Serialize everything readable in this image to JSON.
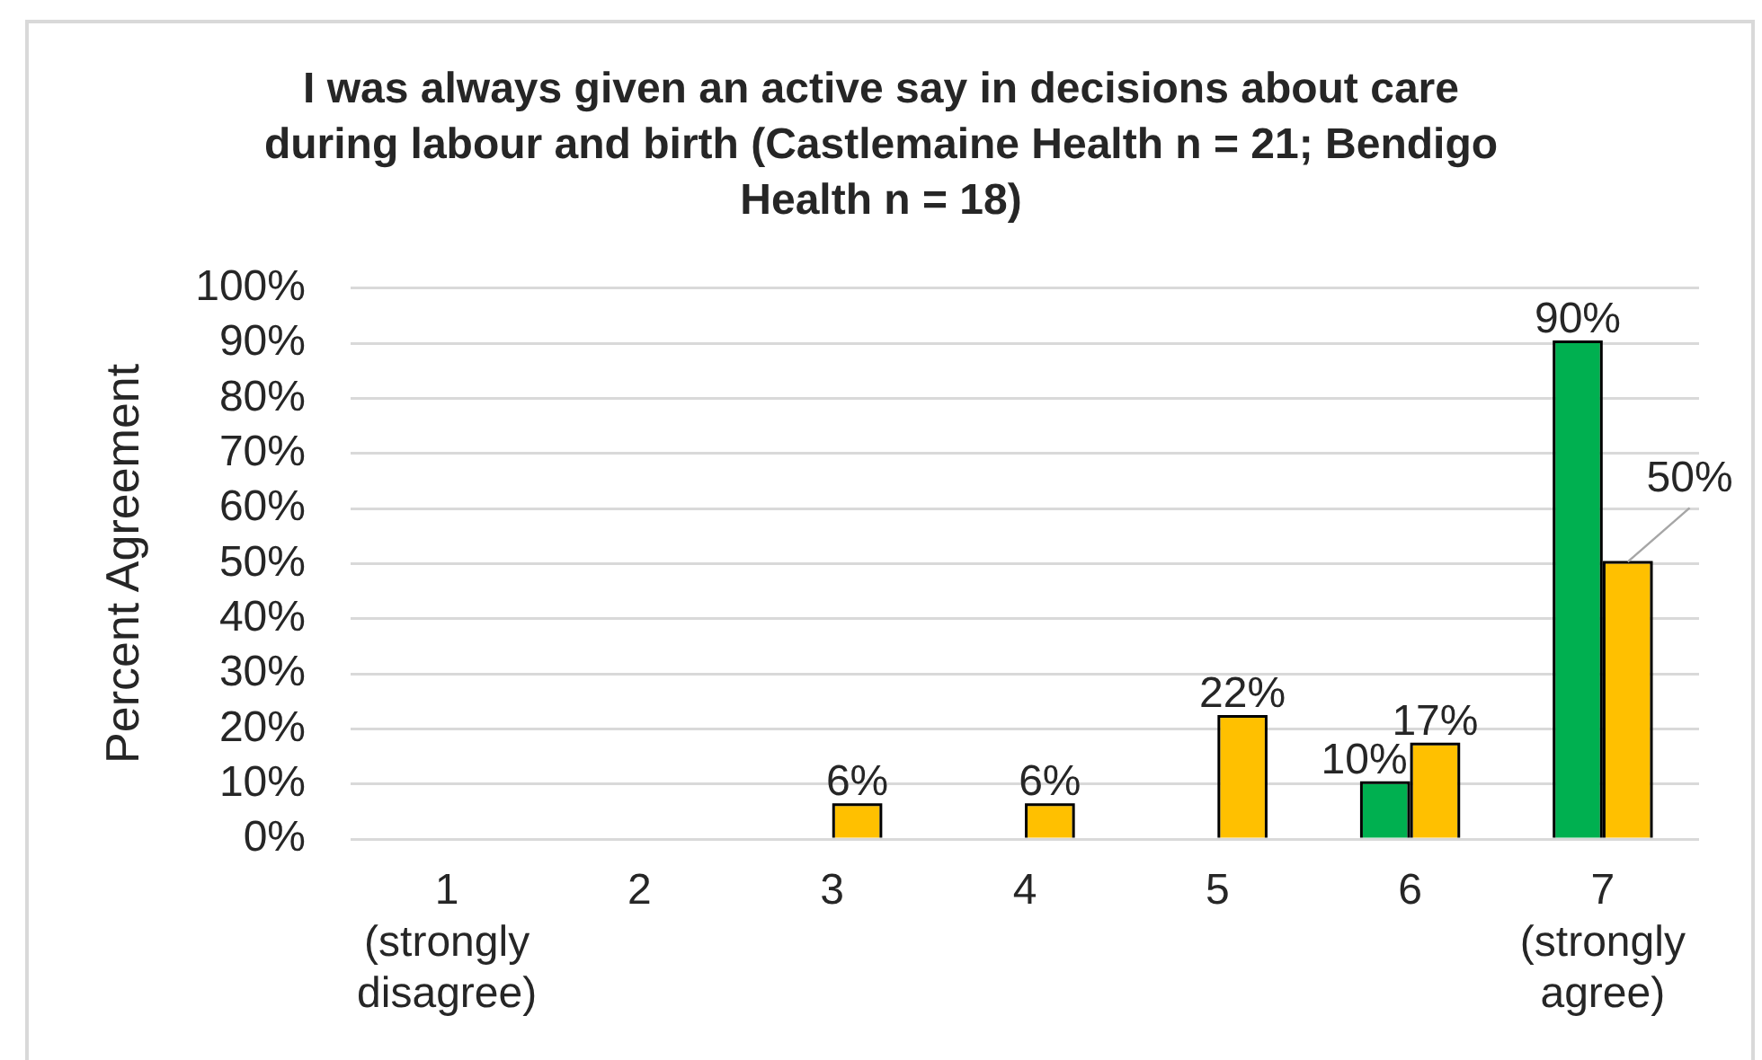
{
  "chart_data": {
    "type": "bar",
    "title": "I was always given an active say in decisions about care during labour and birth (Castlemaine Health n = 21; Bendigo Health n = 18)",
    "ylabel": "Percent Agreement",
    "categories": [
      "1 (strongly disagree)",
      "2",
      "3",
      "4",
      "5",
      "6",
      "7 (strongly agree)"
    ],
    "series": [
      {
        "color": "#00b050",
        "values": [
          0,
          0,
          0,
          0,
          0,
          10,
          90
        ],
        "value_labels": [
          null,
          null,
          null,
          null,
          null,
          "10%",
          "90%"
        ]
      },
      {
        "color": "#ffc000",
        "values": [
          0,
          0,
          6,
          6,
          22,
          17,
          50
        ],
        "value_labels": [
          null,
          null,
          "6%",
          "6%",
          "22%",
          "17%",
          "50%"
        ]
      }
    ],
    "ylim": [
      0,
      100
    ],
    "yticks": [
      {
        "value": 0,
        "label": "0%"
      },
      {
        "value": 10,
        "label": "10%"
      },
      {
        "value": 20,
        "label": "20%"
      },
      {
        "value": 30,
        "label": "30%"
      },
      {
        "value": 40,
        "label": "40%"
      },
      {
        "value": 50,
        "label": "50%"
      },
      {
        "value": 60,
        "label": "60%"
      },
      {
        "value": 70,
        "label": "70%"
      },
      {
        "value": 80,
        "label": "80%"
      },
      {
        "value": 90,
        "label": "90%"
      },
      {
        "value": 100,
        "label": "100%"
      }
    ],
    "grid": "y",
    "legend": false
  }
}
